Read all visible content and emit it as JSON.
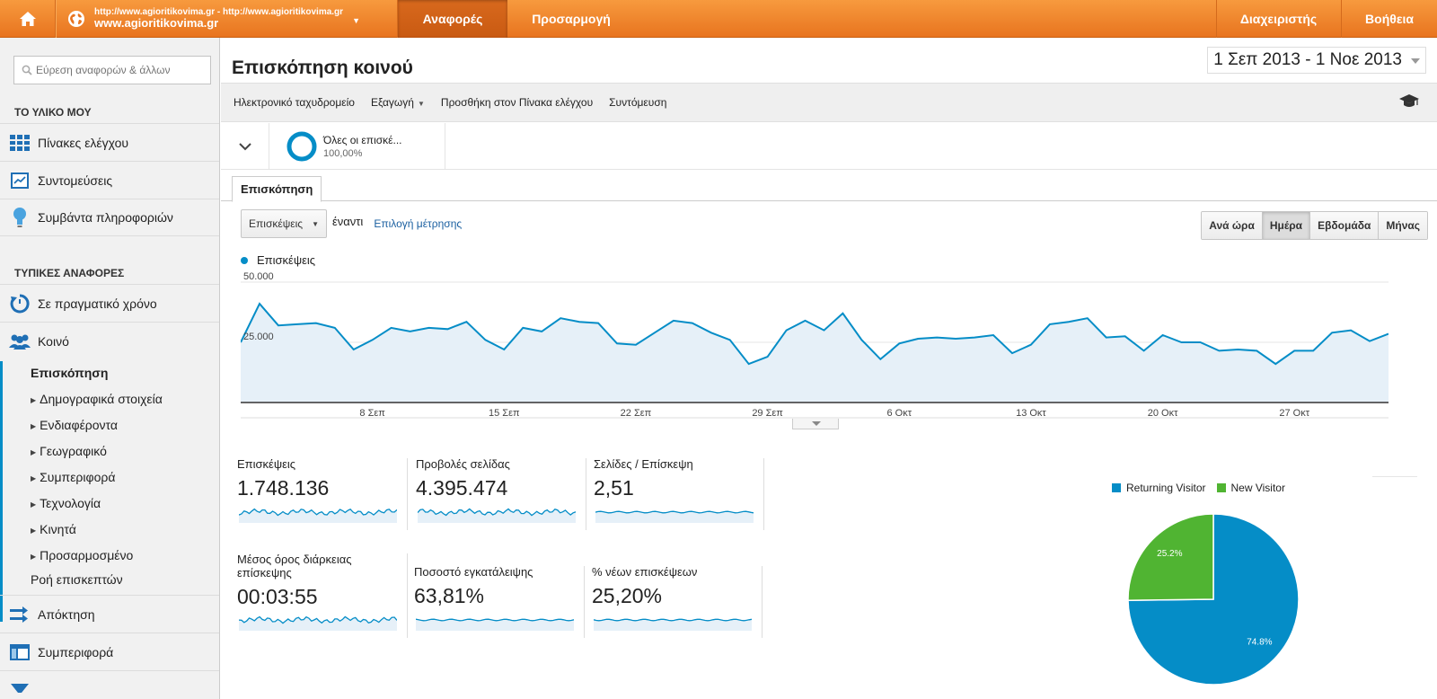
{
  "topbar": {
    "site_url": "http://www.agioritikovima.gr - http://www.agioritikovima.gr",
    "site_name": "www.agioritikovima.gr",
    "reports": "Αναφορές",
    "customization": "Προσαρμογή",
    "admin": "Διαχειριστής",
    "help": "Βοήθεια",
    "accent": "#ef8a2e"
  },
  "sidebar": {
    "search_placeholder": "Εύρεση αναφορών & άλλων",
    "my_stuff_heading": "ΤΟ ΥΛΙΚΟ ΜΟΥ",
    "my_stuff": [
      {
        "label": "Πίνακες ελέγχου",
        "icon": "dashboard-grid-icon"
      },
      {
        "label": "Συντομεύσεις",
        "icon": "shortcut-icon"
      },
      {
        "label": "Συμβάντα πληροφοριών",
        "icon": "lightbulb-icon"
      }
    ],
    "standard_heading": "ΤΥΠΙΚΕΣ ΑΝΑΦΟΡΕΣ",
    "realtime": "Σε πραγματικό χρόνο",
    "audience": "Κοινό",
    "audience_sub": [
      "Επισκόπηση",
      "Δημογραφικά στοιχεία",
      "Ενδιαφέροντα",
      "Γεωγραφικό",
      "Συμπεριφορά",
      "Τεχνολογία",
      "Κινητά",
      "Προσαρμοσμένο",
      "Ροή επισκεπτών"
    ],
    "acquisition": "Απόκτηση",
    "behavior": "Συμπεριφορά"
  },
  "main": {
    "title": "Επισκόπηση κοινού",
    "date_range": "1 Σεπ 2013 - 1 Νοε 2013",
    "actions": [
      "Ηλεκτρονικό ταχυδρομείο",
      "Εξαγωγή",
      "Προσθήκη στον Πίνακα ελέγχου",
      "Συντόμευση"
    ],
    "segment": {
      "name": "Όλες οι επισκέ...",
      "pct": "100,00%"
    },
    "tab": "Επισκόπηση",
    "metric_select": "Επισκέψεις",
    "vs": "έναντι",
    "select_metric": "Επιλογή μέτρησης",
    "granularity": [
      "Ανά ώρα",
      "Ημέρα",
      "Εβδομάδα",
      "Μήνας"
    ],
    "granularity_active": "Ημέρα"
  },
  "chart_data": [
    {
      "type": "area",
      "series": [
        {
          "name": "Επισκέψεις",
          "values": [
            25000,
            41000,
            32000,
            32500,
            33000,
            31000,
            22000,
            26000,
            31000,
            29500,
            31000,
            30500,
            33500,
            26000,
            22000,
            31000,
            29500,
            35000,
            33500,
            33000,
            24500,
            24000,
            29000,
            34000,
            33000,
            29000,
            26000,
            16000,
            19000,
            30000,
            34000,
            30000,
            37000,
            26000,
            18000,
            24500,
            26500,
            27000,
            26500,
            27000,
            28000,
            20500,
            24000,
            32500,
            33500,
            35000,
            27000,
            27500,
            21500,
            28000,
            25000,
            25000,
            21500,
            22000,
            21500,
            16000,
            21500,
            21500,
            29000,
            30000,
            25500,
            28500
          ]
        }
      ],
      "x_tick_labels": [
        "8 Σεπ",
        "15 Σεπ",
        "22 Σεπ",
        "29 Σεπ",
        "6 Οκτ",
        "13 Οκτ",
        "20 Οκτ",
        "27 Οκτ"
      ],
      "y_tick_labels": [
        "50.000",
        "25.000"
      ],
      "ylim": [
        0,
        50000
      ],
      "color": "#058dc7"
    },
    {
      "type": "pie",
      "categories": [
        "Returning Visitor",
        "New Visitor"
      ],
      "values": [
        74.8,
        25.2
      ],
      "labels": [
        "74.8%",
        "25.2%"
      ],
      "colors": [
        "#058dc7",
        "#50b432"
      ]
    }
  ],
  "tiles": [
    {
      "label": "Επισκέψεις",
      "value": "1.748.136"
    },
    {
      "label": "Προβολές σελίδας",
      "value": "4.395.474"
    },
    {
      "label": "Σελίδες / Επίσκεψη",
      "value": "2,51"
    },
    {
      "label": "Μέσος όρος διάρκειας επίσκεψης",
      "value": "00:03:55"
    },
    {
      "label": "Ποσοστό εγκατάλειψης",
      "value": "63,81%"
    },
    {
      "label": "% νέων επισκέψεων",
      "value": "25,20%"
    }
  ]
}
